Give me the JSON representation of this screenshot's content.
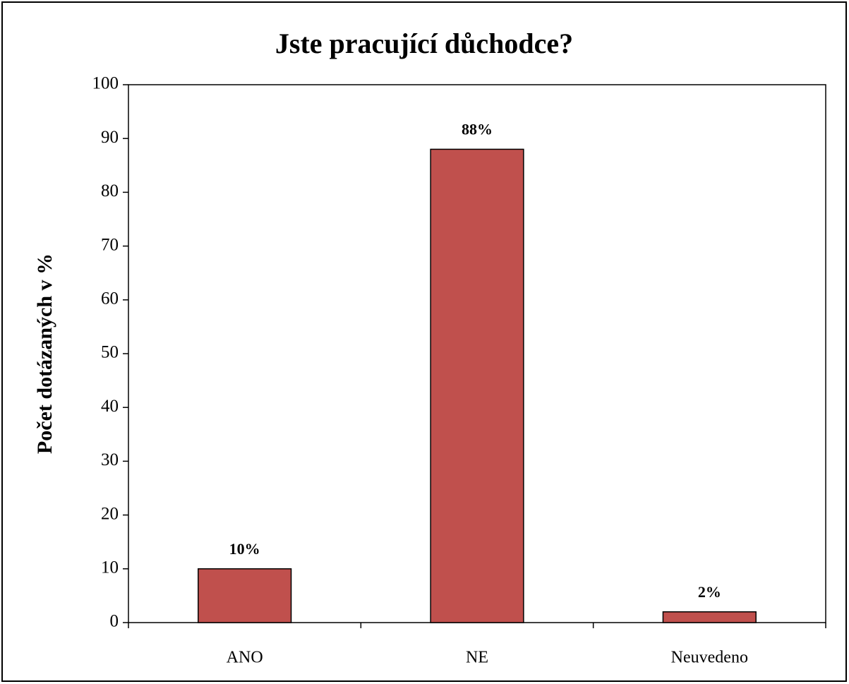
{
  "chart_data": {
    "type": "bar",
    "title": "Jste pracující důchodce?",
    "y_label": "Počet dotázaných v %",
    "categories": [
      "ANO",
      "NE",
      "Neuvedeno"
    ],
    "values": [
      10,
      88,
      2
    ],
    "value_labels": [
      "10%",
      "88%",
      "2%"
    ],
    "color": "#c0504d",
    "ylim": [
      0,
      100
    ],
    "yticks": [
      0,
      10,
      20,
      30,
      40,
      50,
      60,
      70,
      80,
      90,
      100
    ],
    "grid": false
  }
}
